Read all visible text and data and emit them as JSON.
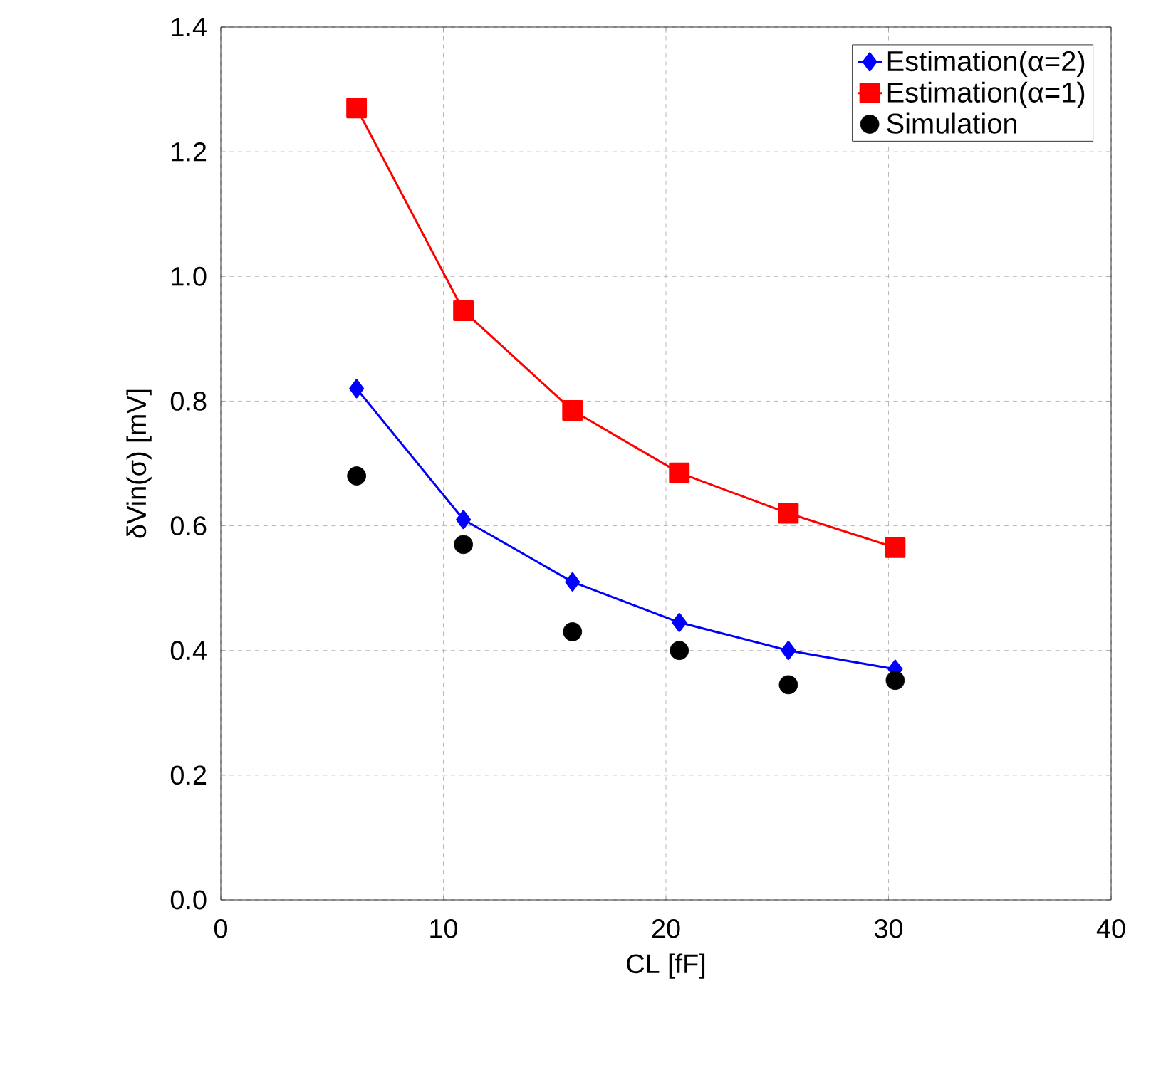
{
  "chart_data": {
    "type": "line",
    "xlabel": "CL [fF]",
    "ylabel": "δVin(σ) [mV]",
    "xlim": [
      0,
      40
    ],
    "xticks": [
      0,
      10,
      20,
      30,
      40
    ],
    "ylim": [
      0,
      1.4
    ],
    "yticks": [
      {
        "value": 0,
        "label": "0.0"
      },
      {
        "value": 0.2,
        "label": "0.2"
      },
      {
        "value": 0.4,
        "label": "0.4"
      },
      {
        "value": 0.6,
        "label": "0.6"
      },
      {
        "value": 0.8,
        "label": "0.8"
      },
      {
        "value": 1.0,
        "label": "1.0"
      },
      {
        "value": 1.2,
        "label": "1.2"
      },
      {
        "value": 1.4,
        "label": "1.4"
      }
    ],
    "grid": true,
    "legend": "top right",
    "x": [
      6.1,
      10.9,
      15.8,
      20.6,
      25.5,
      30.3
    ],
    "series": [
      {
        "name": "Estimation(α=2)",
        "marker": "diamond",
        "color": "#0000ff",
        "values": [
          0.82,
          0.61,
          0.51,
          0.445,
          0.4,
          0.37
        ]
      },
      {
        "name": "Estimation(α=1)",
        "marker": "square",
        "color": "#ff0000",
        "values": [
          1.27,
          0.945,
          0.785,
          0.685,
          0.62,
          0.565
        ]
      },
      {
        "name": "Simulation",
        "type": "scatter",
        "marker": "circle",
        "color": "#000000",
        "values": [
          0.68,
          0.57,
          0.43,
          0.4,
          0.345,
          0.352
        ]
      }
    ]
  }
}
